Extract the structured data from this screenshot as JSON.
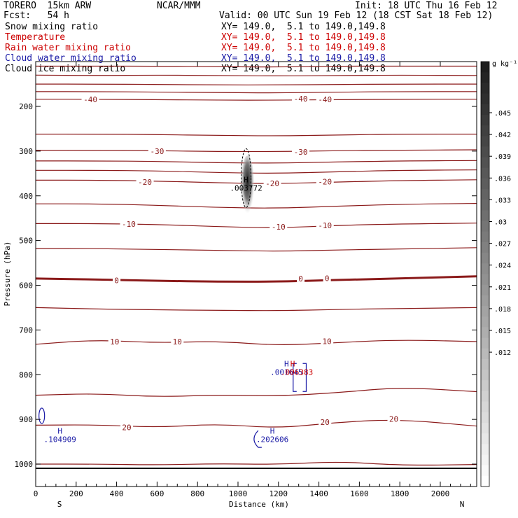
{
  "header": {
    "model": "TORERO  15km ARW",
    "center": "NCAR/MMM",
    "init": "Init: 18 UTC Thu 16 Feb 12",
    "fcst": "Fcst:   54 h",
    "valid": "Valid: 00 UTC Sun 19 Feb 12 (18 CST Sat 18 Feb 12)"
  },
  "fields": [
    {
      "name": "Snow mixing ratio",
      "xy": "XY= 149.0,  5.1 to 149.0,149.8",
      "color": "#000000"
    },
    {
      "name": "Temperature",
      "xy": "XY= 149.0,  5.1 to 149.0,149.8",
      "color": "#cc0000"
    },
    {
      "name": "Rain water mixing ratio",
      "xy": "XY= 149.0,  5.1 to 149.0,149.8",
      "color": "#cc0000"
    },
    {
      "name": "Cloud water mixing ratio",
      "xy": "XY= 149.0,  5.1 to 149.0,149.8",
      "color": "#1a1aa6"
    },
    {
      "name": "Cloud ice mixing ratio",
      "xy": "XY= 149.0,  5.1 to 149.0,149.8",
      "color": "#000000"
    }
  ],
  "colors": {
    "temperature": "#8b1a1a",
    "cloud_water": "#1a1aa6",
    "rain": "#cc0000"
  },
  "chart_data": {
    "type": "cross-section",
    "xlabel": "Distance (km)",
    "ylabel": "Pressure (hPa)",
    "xlim": [
      0,
      2180
    ],
    "ylim": [
      1050,
      100
    ],
    "x_ticks": [
      0,
      200,
      400,
      600,
      800,
      1000,
      1200,
      1400,
      1600,
      1800,
      2000
    ],
    "y_ticks": [
      200,
      300,
      400,
      500,
      600,
      700,
      800,
      900,
      1000
    ],
    "direction_labels": {
      "left": "S",
      "right": "N"
    },
    "colorbar": {
      "unit": "g kg⁻¹",
      "ticks": [
        ".045",
        ".042",
        ".039",
        ".036",
        ".033",
        ".03",
        ".027",
        ".024",
        ".021",
        ".018",
        ".015",
        ".012"
      ]
    },
    "temperature_contours": [
      {
        "value": -45,
        "p": [
          110,
          110,
          110,
          111,
          112,
          110,
          110,
          110
        ]
      },
      {
        "value": -45,
        "p": [
          130,
          131,
          130,
          131,
          132,
          131,
          130,
          131
        ]
      },
      {
        "value": -45,
        "p": [
          150,
          150,
          151,
          152,
          152,
          151,
          150,
          150
        ]
      },
      {
        "value": -45,
        "p": [
          167,
          167,
          168,
          169,
          170,
          168,
          167,
          167
        ]
      },
      {
        "value": -40,
        "p": [
          184,
          184,
          185,
          186,
          186,
          185,
          184,
          184
        ]
      },
      {
        "value": -35,
        "p": [
          262,
          262,
          263,
          265,
          266,
          264,
          262,
          262
        ]
      },
      {
        "value": -30,
        "p": [
          298,
          298,
          299,
          301,
          301,
          299,
          298,
          297
        ]
      },
      {
        "value": -30,
        "p": [
          322,
          322,
          323,
          326,
          327,
          324,
          322,
          321
        ]
      },
      {
        "value": -25,
        "p": [
          343,
          343,
          344,
          348,
          350,
          346,
          343,
          342
        ]
      },
      {
        "value": -20,
        "p": [
          365,
          365,
          367,
          371,
          373,
          369,
          366,
          364
        ]
      },
      {
        "value": -15,
        "p": [
          418,
          418,
          421,
          426,
          428,
          423,
          419,
          417
        ]
      },
      {
        "value": -10,
        "p": [
          462,
          462,
          464,
          469,
          472,
          466,
          463,
          461
        ]
      },
      {
        "value": -5,
        "p": [
          518,
          518,
          520,
          522,
          524,
          521,
          519,
          516
        ]
      },
      {
        "value": 0,
        "p": [
          585,
          587,
          590,
          592,
          592,
          588,
          585,
          580
        ]
      },
      {
        "value": 5,
        "p": [
          650,
          653,
          655,
          656,
          657,
          654,
          652,
          650
        ]
      },
      {
        "value": 10,
        "p": [
          732,
          722,
          729,
          725,
          735,
          728,
          722,
          726
        ]
      },
      {
        "value": 15,
        "p": [
          846,
          842,
          850,
          845,
          848,
          840,
          828,
          838
        ]
      },
      {
        "value": 20,
        "p": [
          913,
          912,
          918,
          910,
          920,
          906,
          900,
          915
        ]
      },
      {
        "value": 25,
        "p": [
          1000,
          1000,
          1002,
          999,
          1001,
          994,
          1003,
          1001
        ]
      }
    ],
    "contour_x": [
      0,
      300,
      600,
      900,
      1200,
      1500,
      1800,
      2180
    ],
    "contour_labels": [
      {
        "text": "-40",
        "x": 270,
        "p": 184
      },
      {
        "text": "-40",
        "x": 1310,
        "p": 183
      },
      {
        "text": "-40",
        "x": 1430,
        "p": 184
      },
      {
        "text": "-30",
        "x": 600,
        "p": 300
      },
      {
        "text": "-30",
        "x": 1310,
        "p": 302
      },
      {
        "text": "-20",
        "x": 540,
        "p": 369
      },
      {
        "text": "-20",
        "x": 1170,
        "p": 372
      },
      {
        "text": "-20",
        "x": 1430,
        "p": 368
      },
      {
        "text": "-10",
        "x": 460,
        "p": 463
      },
      {
        "text": "-10",
        "x": 1200,
        "p": 469
      },
      {
        "text": "-10",
        "x": 1430,
        "p": 466
      },
      {
        "text": "0",
        "x": 400,
        "p": 589
      },
      {
        "text": "0",
        "x": 1310,
        "p": 585
      },
      {
        "text": "0",
        "x": 1440,
        "p": 584
      },
      {
        "text": "10",
        "x": 390,
        "p": 726
      },
      {
        "text": "10",
        "x": 700,
        "p": 726
      },
      {
        "text": "10",
        "x": 1440,
        "p": 725
      },
      {
        "text": "20",
        "x": 450,
        "p": 918
      },
      {
        "text": "20",
        "x": 1430,
        "p": 906
      },
      {
        "text": "20",
        "x": 1770,
        "p": 899
      }
    ],
    "maxima": [
      {
        "label": "H",
        "value": ".003772",
        "x": 1040,
        "p": 376,
        "color": "#000000"
      },
      {
        "label": "H",
        "value": ".001645",
        "x": 1240,
        "p": 788,
        "color": "#1a1aa6"
      },
      {
        "label": "H",
        "value": ".006383",
        "x": 1270,
        "p": 788,
        "color": "#cc0000"
      },
      {
        "label": "H",
        "value": ".104909",
        "x": 120,
        "p": 938,
        "color": "#1a1aa6"
      },
      {
        "label": "H",
        "value": ".202606",
        "x": 1170,
        "p": 938,
        "color": "#1a1aa6"
      }
    ]
  }
}
